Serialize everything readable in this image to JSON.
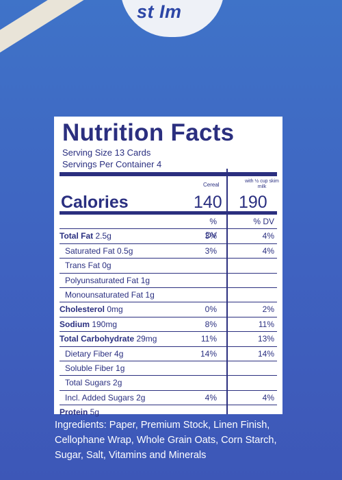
{
  "top_tab_text": "st Im",
  "label": {
    "title": "Nutrition Facts",
    "serving_size": "Serving Size 13 Cards",
    "servings_per_container": "Servings Per Container 4",
    "col1_header": "Cereal",
    "col2_header": "with ½ cup skim milk",
    "calories_label": "Calories",
    "calories_cereal": "140",
    "calories_milk": "190",
    "dv_header": "% DV",
    "rows": [
      {
        "bold": "Total Fat",
        "rest": " 2.5g",
        "indent": false,
        "v1": "3%",
        "v2": "4%"
      },
      {
        "bold": "",
        "rest": "Saturated Fat 0.5g",
        "indent": true,
        "v1": "3%",
        "v2": "4%"
      },
      {
        "bold": "",
        "rest": "Trans Fat 0g",
        "indent": true,
        "v1": "",
        "v2": ""
      },
      {
        "bold": "",
        "rest": "Polyunsaturated Fat 1g",
        "indent": true,
        "v1": "",
        "v2": ""
      },
      {
        "bold": "",
        "rest": "Monounsaturated Fat 1g",
        "indent": true,
        "v1": "",
        "v2": ""
      },
      {
        "bold": "Cholesterol",
        "rest": " 0mg",
        "indent": false,
        "v1": "0%",
        "v2": "2%"
      },
      {
        "bold": "Sodium",
        "rest": " 190mg",
        "indent": false,
        "v1": "8%",
        "v2": "11%"
      },
      {
        "bold": "Total Carbohydrate",
        "rest": " 29mg",
        "indent": false,
        "v1": "11%",
        "v2": "13%"
      },
      {
        "bold": "",
        "rest": "Dietary Fiber 4g",
        "indent": true,
        "v1": "14%",
        "v2": "14%"
      },
      {
        "bold": "",
        "rest": "Soluble Fiber 1g",
        "indent": true,
        "v1": "",
        "v2": ""
      },
      {
        "bold": "",
        "rest": "Total Sugars 2g",
        "indent": true,
        "v1": "",
        "v2": ""
      },
      {
        "bold": "",
        "rest": "Incl. Added Sugars 2g",
        "indent": true,
        "v1": "4%",
        "v2": "4%"
      },
      {
        "bold": "Protein",
        "rest": " 5g",
        "indent": false,
        "v1": "",
        "v2": ""
      }
    ]
  },
  "ingredients": [
    "Ingredients: Paper, Premium Stock, Linen Finish,",
    "Cellophane Wrap, Whole Grain Oats, Corn Starch,",
    "Sugar, Salt, Vitamins and Minerals"
  ],
  "colors": {
    "background_top": "#3f73c8",
    "background_bottom": "#3d57b7",
    "label_ink": "#2b2f7f",
    "label_bg": "#ffffff",
    "ingredients_text": "#ffffff"
  }
}
